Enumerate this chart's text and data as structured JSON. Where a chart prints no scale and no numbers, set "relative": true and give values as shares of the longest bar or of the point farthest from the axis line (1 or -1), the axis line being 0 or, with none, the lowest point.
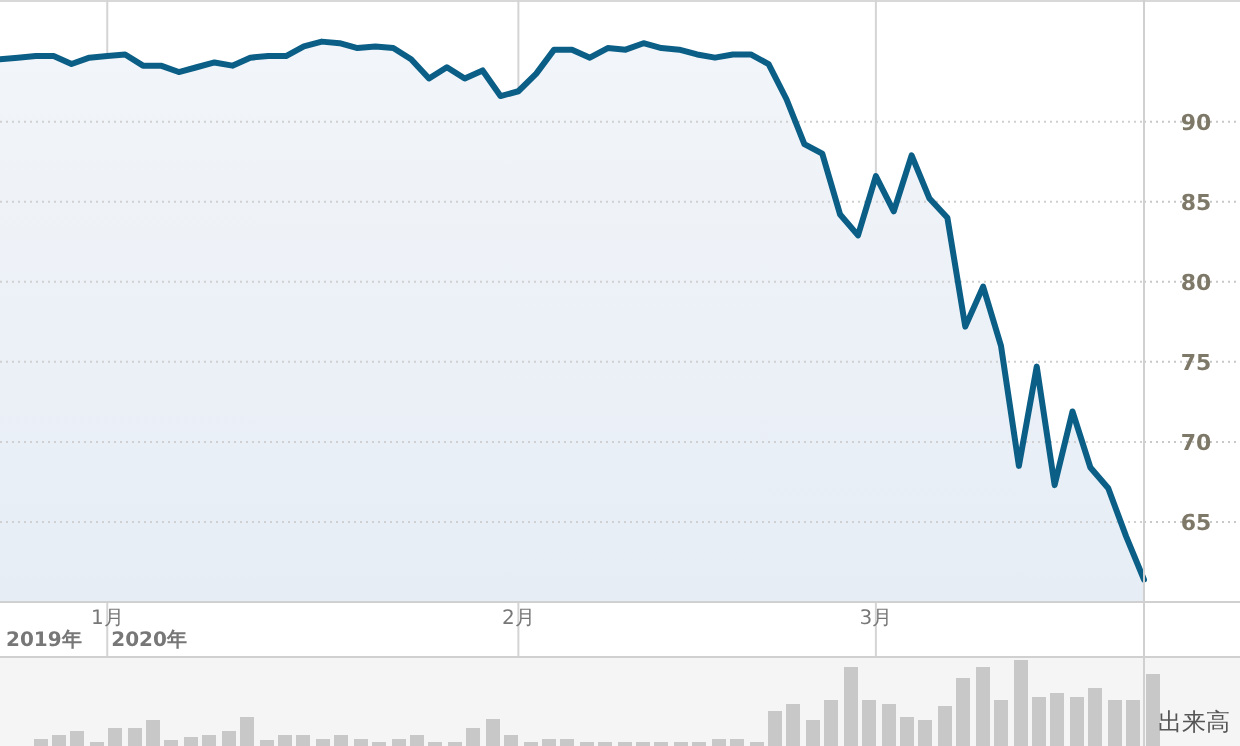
{
  "chart_data": [
    {
      "type": "area",
      "color": "#0b5f87",
      "grid": true,
      "categories": [
        null,
        null,
        null,
        null,
        null,
        null,
        "1月",
        null,
        null,
        null,
        null,
        null,
        null,
        null,
        null,
        null,
        null,
        null,
        null,
        null,
        null,
        null,
        null,
        null,
        null,
        null,
        null,
        null,
        null,
        "2月",
        null,
        null,
        null,
        null,
        null,
        null,
        null,
        null,
        null,
        null,
        null,
        null,
        null,
        null,
        null,
        null,
        null,
        null,
        null,
        "3月",
        null,
        null,
        null,
        null,
        null,
        null,
        null,
        null,
        null,
        null,
        null,
        null,
        null,
        null,
        null
      ],
      "values": [
        93.9,
        94.0,
        94.1,
        94.1,
        93.6,
        94.0,
        94.1,
        94.2,
        93.5,
        93.5,
        93.1,
        93.4,
        93.7,
        93.5,
        94.0,
        94.1,
        94.1,
        94.7,
        95.0,
        94.9,
        94.6,
        94.7,
        94.6,
        93.9,
        92.7,
        93.4,
        92.7,
        93.2,
        91.6,
        91.9,
        93.0,
        94.5,
        94.5,
        94.0,
        94.6,
        94.5,
        94.9,
        94.6,
        94.5,
        94.2,
        94.0,
        94.2,
        94.2,
        93.6,
        91.4,
        88.6,
        88.0,
        84.2,
        82.9,
        86.6,
        84.4,
        87.9,
        85.2,
        84.0,
        77.2,
        79.7,
        76.0,
        68.5,
        74.7,
        67.3,
        71.9,
        68.4,
        67.1,
        64.1,
        61.4
      ],
      "ylim": [
        60,
        97.6
      ],
      "yticks": [
        65,
        70,
        75,
        80,
        85,
        90
      ],
      "annotations": [
        "2019年",
        "2020年"
      ]
    },
    {
      "type": "bar",
      "relative": true,
      "color": "#c8c8c8",
      "ylabel": "出来高",
      "categories": [
        null,
        null,
        null,
        null,
        null,
        null,
        null,
        null,
        null,
        null,
        null,
        null,
        null,
        null,
        null,
        null,
        null,
        null,
        null,
        null,
        null,
        null,
        null,
        null,
        null,
        null,
        null,
        null,
        null,
        null,
        null,
        null,
        null,
        null,
        null,
        null,
        null,
        null,
        null,
        null,
        null,
        null,
        null,
        null,
        null,
        null,
        null,
        null,
        null,
        null,
        null,
        null,
        null,
        null,
        null,
        null,
        null,
        null,
        null,
        null
      ],
      "values": [
        0.08,
        0.13,
        0.18,
        0.05,
        0.21,
        0.21,
        0.3,
        0.07,
        0.1,
        0.13,
        0.18,
        0.34,
        0.07,
        0.13,
        0.13,
        0.08,
        0.13,
        0.08,
        0.05,
        0.08,
        0.13,
        0.05,
        0.05,
        0.21,
        0.31,
        0.13,
        0.05,
        0.08,
        0.08,
        0.05,
        0.05,
        0.05,
        0.05,
        0.05,
        0.05,
        0.05,
        0.08,
        0.08,
        0.05,
        0.41,
        0.49,
        0.3,
        0.54,
        0.92,
        0.54,
        0.49,
        0.34,
        0.3,
        0.46,
        0.79,
        0.92,
        0.54,
        1.0,
        0.57,
        0.62,
        0.57,
        0.67,
        0.54,
        0.54,
        0.84
      ]
    }
  ]
}
